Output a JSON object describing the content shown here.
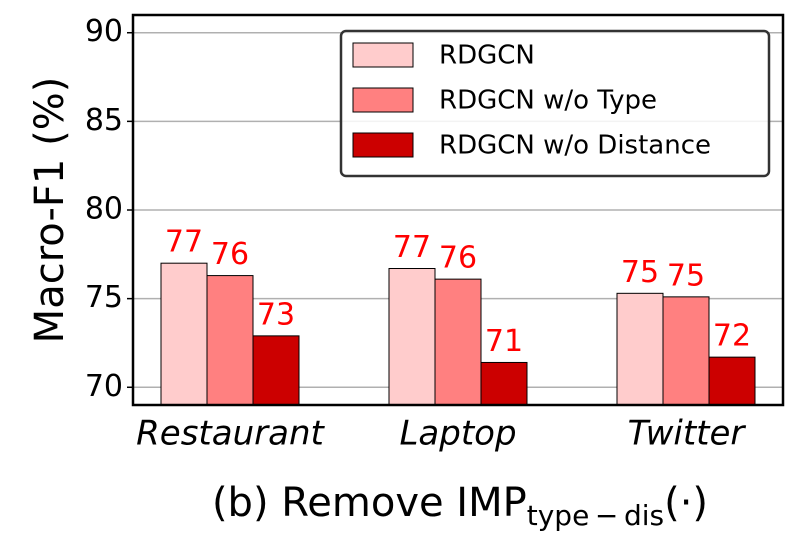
{
  "chart_data": {
    "type": "bar",
    "title": {
      "text": "(b) Remove IMP",
      "subscript": "type − dis",
      "suffix": "(·)"
    },
    "y_label": "Macro-F1 (%)",
    "categories": [
      "Restaurant",
      "Laptop",
      "Twitter"
    ],
    "series": [
      {
        "name": "RDGCN",
        "color": "#ffcccc",
        "values": [
          77.0,
          76.7,
          75.3
        ],
        "value_labels": [
          "77",
          "77",
          "75"
        ]
      },
      {
        "name": "RDGCN w/o Type",
        "color": "#ff8080",
        "values": [
          76.3,
          76.1,
          75.1
        ],
        "value_labels": [
          "76",
          "76",
          "75"
        ]
      },
      {
        "name": "RDGCN w/o Distance",
        "color": "#cc0000",
        "values": [
          72.9,
          71.4,
          71.7
        ],
        "value_labels": [
          "73",
          "71",
          "72"
        ]
      }
    ],
    "ylim": [
      69,
      91
    ],
    "yticks": [
      70,
      75,
      80,
      85,
      90
    ],
    "grid": true,
    "legend": "upper right",
    "value_label_color": "#ff0000"
  }
}
